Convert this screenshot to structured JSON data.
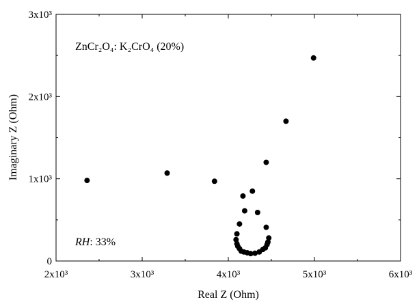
{
  "chart_data": {
    "type": "scatter",
    "xlabel": "Real Z (Ohm)",
    "ylabel": "Imaginary Z (Ohm)",
    "xlim": [
      2000,
      6000
    ],
    "ylim": [
      0,
      3000
    ],
    "x_ticks": [
      {
        "value": 2000,
        "label": "2x10³"
      },
      {
        "value": 3000,
        "label": "3x10³"
      },
      {
        "value": 4000,
        "label": "4x10³"
      },
      {
        "value": 5000,
        "label": "5x10³"
      },
      {
        "value": 6000,
        "label": "6x10³"
      }
    ],
    "y_ticks": [
      {
        "value": 0,
        "label": "0"
      },
      {
        "value": 1000,
        "label": "1x10³"
      },
      {
        "value": 2000,
        "label": "2x10³"
      },
      {
        "value": 3000,
        "label": "3x10³"
      }
    ],
    "annotations": {
      "compound": "ZnCr₂O₄: K₂CrO₄ (20%)",
      "rh_label": "RH",
      "rh_value": ": 33%"
    },
    "grid": false,
    "marker_color": "#000000",
    "series": [
      {
        "x": [
          2360,
          3290,
          3840,
          4670,
          4990,
          4440,
          4280,
          4170,
          4340,
          4190,
          4130,
          4440,
          4470,
          4100,
          4090,
          4100,
          4110,
          4130,
          4150,
          4180,
          4220,
          4260,
          4310,
          4360,
          4400,
          4430,
          4450,
          4460
        ],
        "y": [
          980,
          1070,
          970,
          1700,
          2470,
          1200,
          850,
          790,
          590,
          610,
          450,
          410,
          280,
          330,
          260,
          210,
          180,
          150,
          120,
          110,
          100,
          90,
          95,
          110,
          140,
          160,
          200,
          230
        ]
      }
    ]
  }
}
